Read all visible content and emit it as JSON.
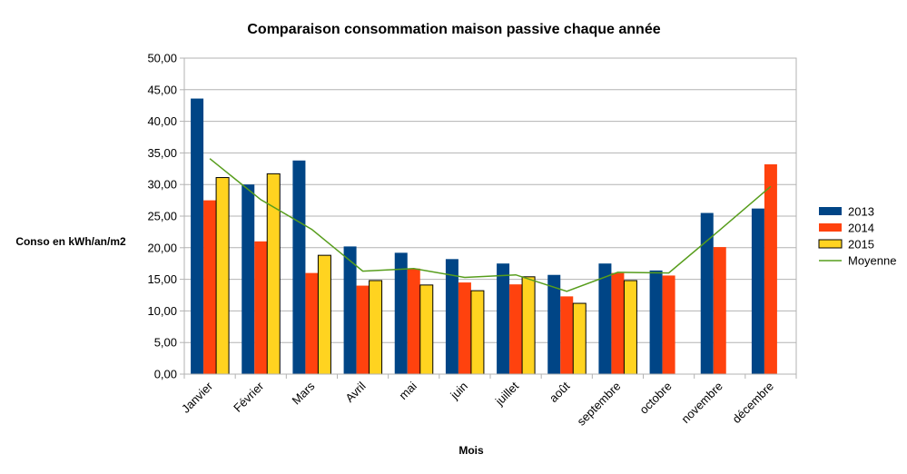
{
  "chart_data": {
    "type": "bar",
    "title": "Comparaison consommation maison passive chaque année",
    "xlabel": "Mois",
    "ylabel": "Conso en kWh/an/m2",
    "ylim": [
      0,
      50
    ],
    "yticks": [
      "0,00",
      "5,00",
      "10,00",
      "15,00",
      "20,00",
      "25,00",
      "30,00",
      "35,00",
      "40,00",
      "45,00",
      "50,00"
    ],
    "grid": true,
    "legend_position": "right",
    "categories": [
      "Janvier",
      "Février",
      "Mars",
      "Avril",
      "mai",
      "juin",
      "juillet",
      "août",
      "septembre",
      "octobre",
      "novembre",
      "décembre"
    ],
    "series": [
      {
        "name": "2013",
        "kind": "bar",
        "color": "#004586",
        "values": [
          43.6,
          30.0,
          33.8,
          20.2,
          19.2,
          18.2,
          17.5,
          15.7,
          17.5,
          16.4,
          25.5,
          26.2
        ]
      },
      {
        "name": "2014",
        "kind": "bar",
        "color": "#ff420e",
        "values": [
          27.5,
          21.0,
          16.0,
          14.0,
          16.7,
          14.5,
          14.2,
          12.3,
          16.0,
          15.6,
          20.1,
          33.2
        ]
      },
      {
        "name": "2015",
        "kind": "bar",
        "color": "#ffd320",
        "values": [
          31.1,
          31.7,
          18.8,
          14.8,
          14.1,
          13.2,
          15.4,
          11.2,
          14.8,
          null,
          null,
          null
        ]
      },
      {
        "name": "Moyenne",
        "kind": "line",
        "color": "#579d1c",
        "values": [
          34.1,
          27.6,
          22.9,
          16.3,
          16.7,
          15.3,
          15.7,
          13.1,
          16.1,
          16.0,
          22.8,
          29.7
        ]
      }
    ]
  }
}
